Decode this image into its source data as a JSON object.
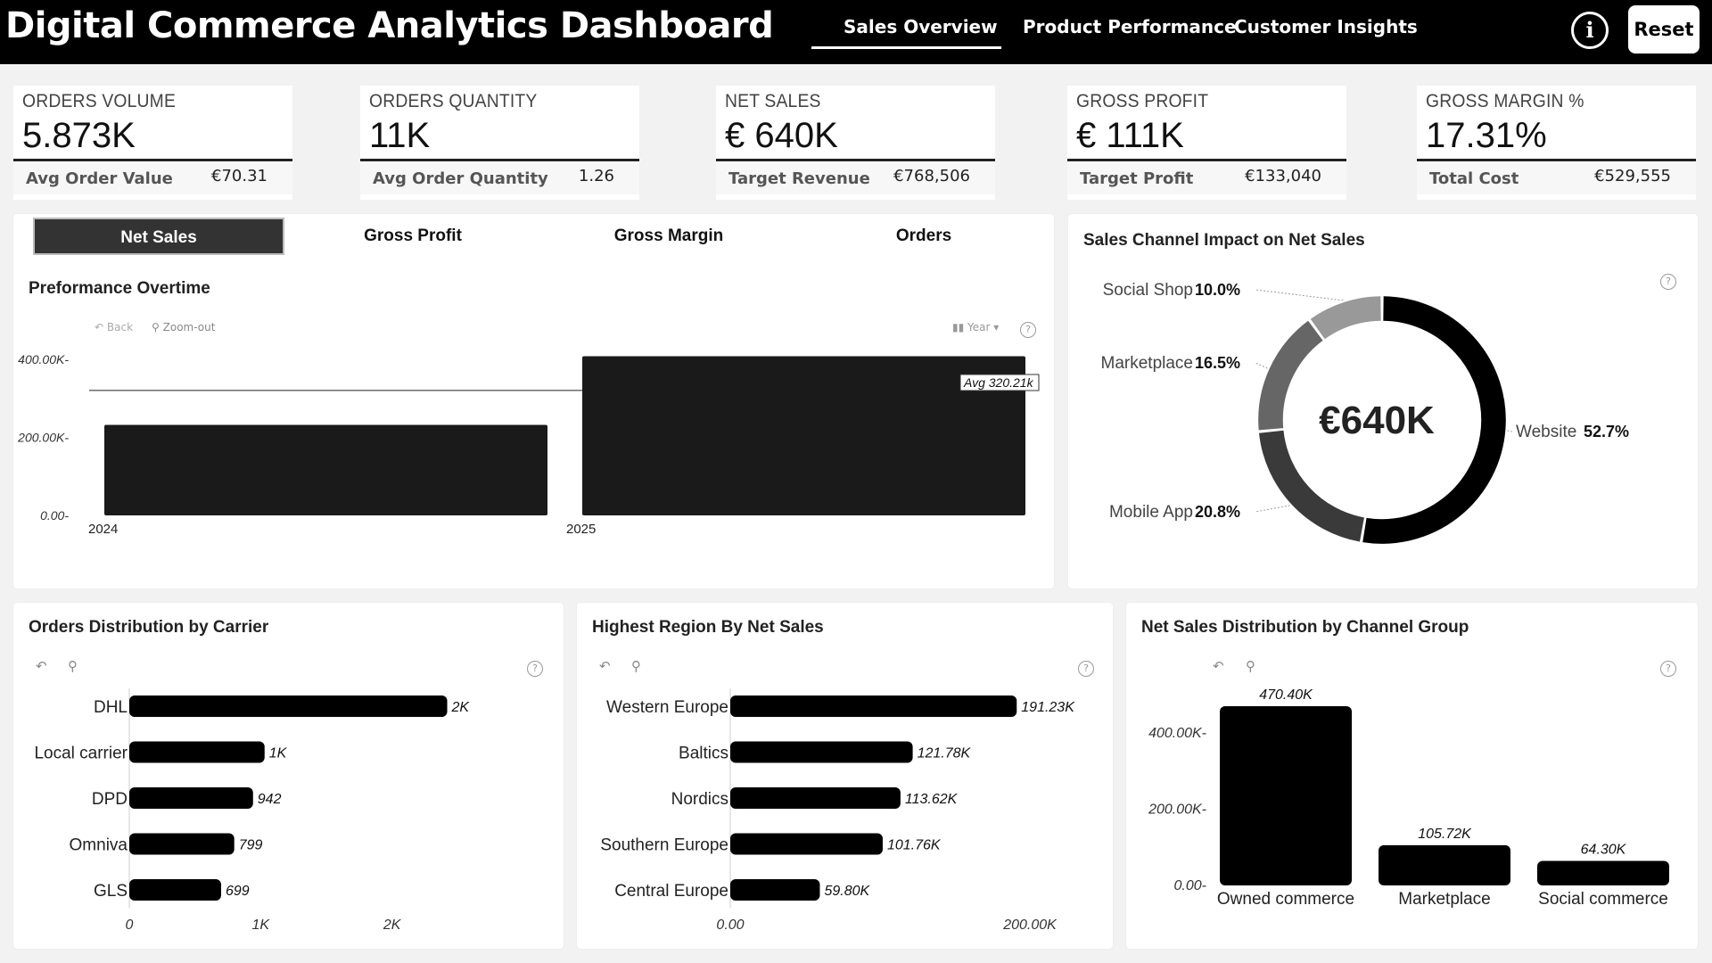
{
  "header": {
    "title": "Digital Commerce Analytics Dashboard",
    "nav": [
      {
        "label": "Sales Overview"
      },
      {
        "label": "Product Performance"
      },
      {
        "label": "Customer Insights"
      }
    ],
    "info_icon": "info-icon",
    "reset_label": "Reset"
  },
  "kpis": [
    {
      "title": "ORDERS VOLUME",
      "value": "5.873K",
      "sub_label": "Avg Order Value",
      "sub_value": "€70.31"
    },
    {
      "title": "ORDERS QUANTITY",
      "value": "11K",
      "sub_label": "Avg Order Quantity",
      "sub_value": "1.26"
    },
    {
      "title": "NET SALES",
      "value": "€ 640K",
      "sub_label": "Target Revenue",
      "sub_value": "€768,506"
    },
    {
      "title": "GROSS PROFIT",
      "value": "€ 111K",
      "sub_label": "Target Profit",
      "sub_value": "€133,040"
    },
    {
      "title": "GROSS MARGIN %",
      "value": "17.31%",
      "sub_label": "Total Cost",
      "sub_value": "€529,555"
    }
  ],
  "measure_tabs": [
    {
      "label": "Net Sales"
    },
    {
      "label": "Gross Profit"
    },
    {
      "label": "Gross Margin"
    },
    {
      "label": "Orders"
    }
  ],
  "performance": {
    "title": "Preformance Overtime",
    "back_label": "Back",
    "zoom_label": "Zoom-out",
    "granularity_label": "Year"
  },
  "channel_impact": {
    "title": "Sales Channel Impact on Net Sales",
    "center_label": "€640K"
  },
  "carrier": {
    "title": "Orders Distribution by Carrier"
  },
  "region": {
    "title": "Highest Region By Net Sales"
  },
  "channel_group": {
    "title": "Net Sales Distribution by Channel Group"
  },
  "colors": {
    "header_bg": "#000000",
    "bar": "#1a1a1a",
    "panel_bg": "#ffffff",
    "page_bg": "#f2f2f2"
  },
  "chart_data": [
    {
      "id": "performance",
      "type": "bar",
      "categories": [
        "2024",
        "2025"
      ],
      "values": [
        232000,
        408000
      ],
      "ylim": [
        0,
        400000
      ],
      "yticks": [
        "0.00",
        "200.00K",
        "400.00K"
      ],
      "reference_line": {
        "label": "Avg 320.21k",
        "value": 320210
      }
    },
    {
      "id": "channel_impact",
      "type": "pie",
      "donut": true,
      "slices": [
        {
          "label": "Website",
          "pct_label": "52.7%",
          "value": 52.7,
          "color": "#000000"
        },
        {
          "label": "Mobile App",
          "pct_label": "20.8%",
          "value": 20.8,
          "color": "#3a3a3a"
        },
        {
          "label": "Marketplace",
          "pct_label": "16.5%",
          "value": 16.5,
          "color": "#666666"
        },
        {
          "label": "Social Shop",
          "pct_label": "10.0%",
          "value": 10.0,
          "color": "#999999"
        }
      ]
    },
    {
      "id": "carrier",
      "type": "bar",
      "orientation": "horizontal",
      "categories": [
        "DHL",
        "Local carrier",
        "DPD",
        "Omniva",
        "GLS"
      ],
      "values": [
        2420,
        1030,
        942,
        799,
        699
      ],
      "labels": [
        "2K",
        "1K",
        "942",
        "799",
        "699"
      ],
      "xlim": [
        0,
        3000
      ],
      "xticks": [
        {
          "value": 0,
          "label": "0"
        },
        {
          "value": 1000,
          "label": "1K"
        },
        {
          "value": 2000,
          "label": "2K"
        }
      ]
    },
    {
      "id": "region",
      "type": "bar",
      "orientation": "horizontal",
      "categories": [
        "Western Europe",
        "Baltics",
        "Nordics",
        "Southern Europe",
        "Central Europe"
      ],
      "values": [
        191230,
        121780,
        113620,
        101760,
        59800
      ],
      "labels": [
        "191.23K",
        "121.78K",
        "113.62K",
        "101.76K",
        "59.80K"
      ],
      "xlim": [
        0,
        200000
      ],
      "xticks": [
        {
          "value": 0,
          "label": "0.00"
        },
        {
          "value": 200000,
          "label": "200.00K"
        }
      ]
    },
    {
      "id": "channel_group",
      "type": "bar",
      "categories": [
        "Owned commerce",
        "Marketplace",
        "Social commerce"
      ],
      "values": [
        470400,
        105720,
        64300
      ],
      "labels": [
        "470.40K",
        "105.72K",
        "64.30K"
      ],
      "ylim": [
        0,
        470400
      ],
      "yticks": [
        {
          "value": 0,
          "label": "0.00"
        },
        {
          "value": 200000,
          "label": "200.00K"
        },
        {
          "value": 400000,
          "label": "400.00K"
        }
      ]
    }
  ]
}
